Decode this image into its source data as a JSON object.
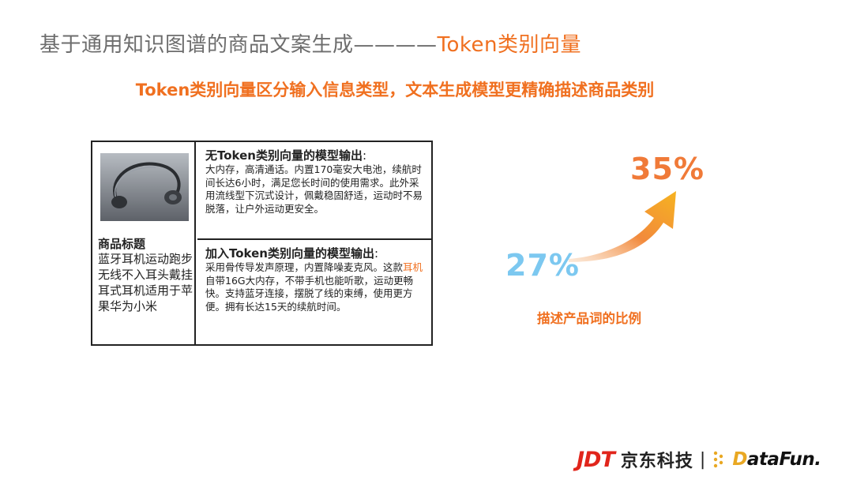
{
  "header": {
    "title_main": "基于通用知识图谱的商品文案生成————",
    "title_accent": "Token类别向量",
    "subtitle": "Token类别向量区分输入信息类型，文本生成模型更精确描述商品类别"
  },
  "table": {
    "product_label_head": "商品标题",
    "product_label_body": "蓝牙耳机运动跑步无线不入耳头戴挂耳式耳机适用于苹果华为小米",
    "without": {
      "head": "无Token类别向量的模型输出",
      "colon": ":",
      "body": "大内存，高清通话。内置170毫安大电池，续航时间长达6小时，满足您长时间的使用需求。此外采用流线型下沉式设计，佩戴稳固舒适，运动时不易脱落，让户外运动更安全。"
    },
    "with": {
      "head": "加入Token类别向量的模型输出",
      "colon": ":",
      "body_1": "采用骨传导发声原理，内置降噪麦克风。这款",
      "body_highlight": "耳机",
      "body_2": "自带16G大内存，不带手机也能听歌，运动更畅快。支持蓝牙连接，摆脱了线的束缚，使用更方便。拥有长达15天的续航时间。"
    }
  },
  "stats": {
    "before": "27%",
    "after": "35%",
    "caption": "描述产品词的比例"
  },
  "chart_data": {
    "type": "line",
    "categories": [
      "无Token类别向量",
      "加入Token类别向量"
    ],
    "values": [
      27,
      35
    ],
    "title": "",
    "ylabel": "描述产品词的比例"
  },
  "footer": {
    "jdt": "JDT",
    "jdt_cn": "京东科技",
    "separator": "|",
    "datafun_d": "D",
    "datafun_rest": "ataFun."
  },
  "colors": {
    "accent": "#f07020",
    "gray_title": "#6d6d6d",
    "pct_low": "#7cc8f0",
    "pct_high": "#f07a38",
    "jdt_red": "#e1251b"
  }
}
